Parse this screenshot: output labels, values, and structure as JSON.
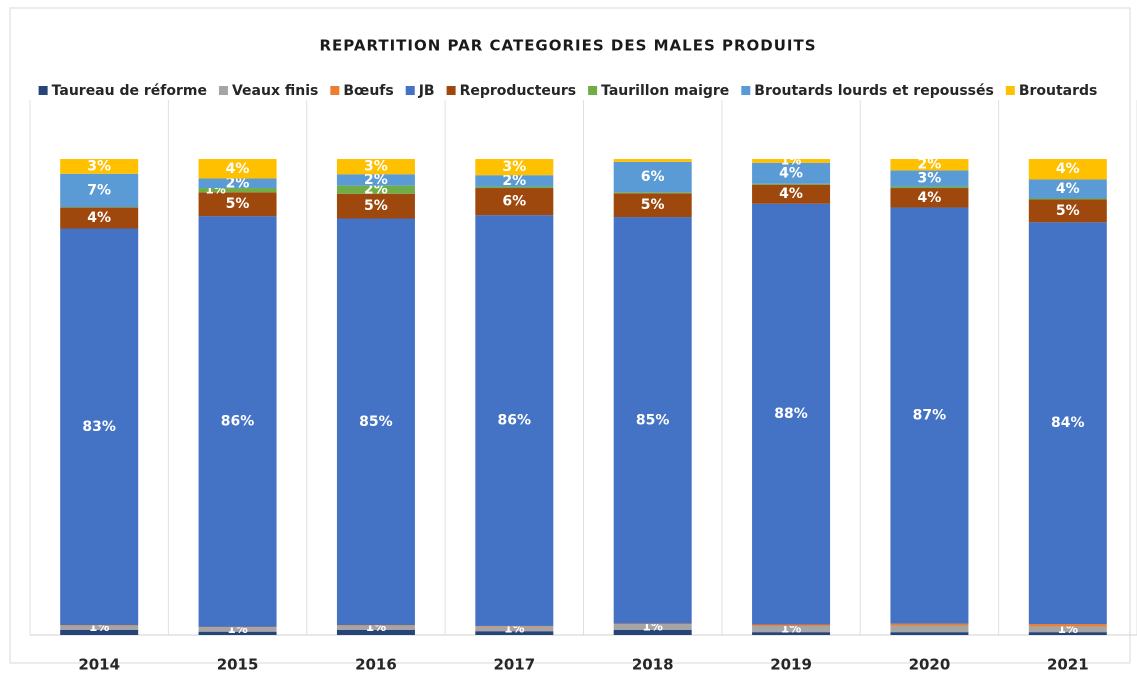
{
  "chart_data": {
    "type": "bar",
    "stacked": true,
    "title": "REPARTITION PAR CATEGORIES DES MALES PRODUITS",
    "categories": [
      "2014",
      "2015",
      "2016",
      "2017",
      "2018",
      "2019",
      "2020",
      "2021"
    ],
    "ylim": [
      0,
      100
    ],
    "legend": "top",
    "series": [
      {
        "name": "Taureau de réforme",
        "color": "#264478",
        "values": [
          1.1,
          0.7,
          1.1,
          0.8,
          1.1,
          0.6,
          0.6,
          0.6
        ],
        "value_labels": [
          null,
          null,
          null,
          null,
          null,
          null,
          null,
          null
        ]
      },
      {
        "name": "Veaux finis",
        "color": "#a5a5a5",
        "values": [
          0.9,
          0.9,
          0.9,
          1.0,
          1.2,
          1.3,
          1.4,
          1.2
        ],
        "value_labels": [
          "1%",
          "1%",
          "1%",
          "1%",
          "1%",
          "1%",
          null,
          "1%"
        ]
      },
      {
        "name": "Bœufs",
        "color": "#ed7d31",
        "values": [
          0.1,
          0.1,
          0.1,
          0.1,
          0.1,
          0.3,
          0.4,
          0.5
        ],
        "value_labels": [
          null,
          null,
          null,
          null,
          null,
          null,
          null,
          null
        ]
      },
      {
        "name": "JB",
        "color": "#4472c4",
        "values": [
          83.3,
          86.3,
          85.4,
          86.3,
          85.4,
          88.4,
          87.4,
          84.4
        ],
        "value_labels": [
          "83%",
          "86%",
          "85%",
          "86%",
          "85%",
          "88%",
          "87%",
          "84%"
        ]
      },
      {
        "name": "Reproducteurs",
        "color": "#9e480e",
        "values": [
          4.4,
          5.0,
          5.2,
          5.7,
          5.0,
          4.0,
          4.1,
          4.8
        ],
        "value_labels": [
          "4%",
          "5%",
          "5%",
          "6%",
          "5%",
          "4%",
          "4%",
          "5%"
        ]
      },
      {
        "name": "Taurillon maigre",
        "color": "#70ad47",
        "values": [
          0.1,
          0.9,
          1.7,
          0.3,
          0.2,
          0.2,
          0.3,
          0.2
        ],
        "value_labels": [
          null,
          "1%",
          "2%",
          null,
          null,
          null,
          null,
          null
        ]
      },
      {
        "name": "Broutards lourds et repoussés",
        "color": "#5b9bd5",
        "values": [
          7.0,
          2.0,
          2.4,
          2.4,
          6.4,
          4.4,
          3.4,
          4.0
        ],
        "value_labels": [
          "7%",
          "2%",
          "2%",
          "2%",
          "6%",
          "4%",
          "3%",
          "4%"
        ]
      },
      {
        "name": "Broutards",
        "color": "#ffc000",
        "values": [
          3.1,
          4.1,
          3.2,
          3.4,
          0.6,
          0.8,
          2.4,
          4.3
        ],
        "value_labels": [
          "3%",
          "4%",
          "3%",
          "3%",
          null,
          "1%",
          "2%",
          "4%"
        ]
      }
    ]
  }
}
